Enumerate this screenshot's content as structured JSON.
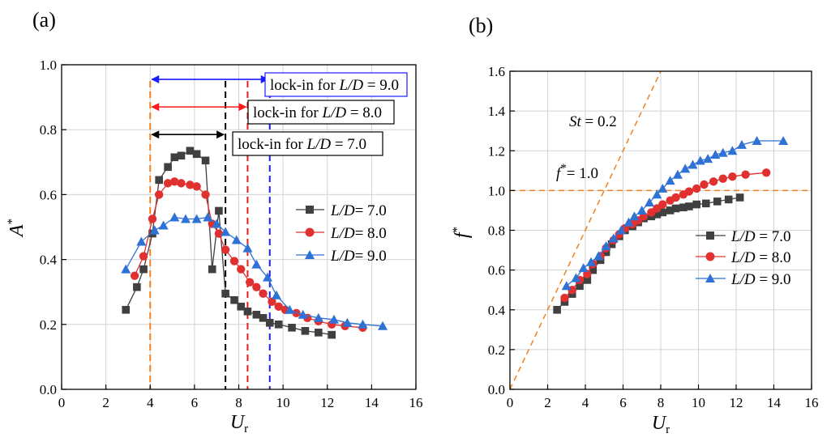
{
  "chart_data": [
    {
      "type": "line",
      "panel_label": "(a)",
      "xlabel": "U",
      "xlabel_sub": "r",
      "ylabel": "A",
      "ylabel_sup": "*",
      "xlim": [
        0,
        16
      ],
      "ylim": [
        0,
        1.0
      ],
      "xticks": [
        0,
        2,
        4,
        6,
        8,
        10,
        12,
        14,
        16
      ],
      "yticks": [
        0.0,
        0.2,
        0.4,
        0.6,
        0.8,
        1.0
      ],
      "xtick_labels": [
        "0",
        "2",
        "4",
        "6",
        "8",
        "10",
        "12",
        "14",
        "16"
      ],
      "ytick_labels": [
        "0.0",
        "0.2",
        "0.4",
        "0.6",
        "0.8",
        "1.0"
      ],
      "grid": true,
      "legend_position": "right-middle",
      "series": [
        {
          "name": "L/D= 7.0",
          "legend_prefix": "L/D",
          "legend_suffix": "= 7.0",
          "color": "#404040",
          "marker": "square",
          "x": [
            2.9,
            3.4,
            3.7,
            4.1,
            4.4,
            4.8,
            5.1,
            5.4,
            5.8,
            6.1,
            6.5,
            6.8,
            7.1,
            7.4,
            7.8,
            8.1,
            8.4,
            8.8,
            9.1,
            9.4,
            9.8,
            10.4,
            11.0,
            11.6,
            12.2
          ],
          "values": [
            0.245,
            0.315,
            0.37,
            0.48,
            0.645,
            0.685,
            0.715,
            0.72,
            0.735,
            0.725,
            0.705,
            0.37,
            0.55,
            0.295,
            0.275,
            0.255,
            0.24,
            0.23,
            0.22,
            0.205,
            0.2,
            0.19,
            0.18,
            0.175,
            0.168
          ]
        },
        {
          "name": "L/D= 8.0",
          "legend_prefix": "L/D",
          "legend_suffix": "= 8.0",
          "color": "#e03030",
          "marker": "circle",
          "x": [
            3.3,
            3.7,
            4.1,
            4.4,
            4.8,
            5.1,
            5.4,
            5.8,
            6.1,
            6.5,
            6.8,
            7.1,
            7.4,
            7.8,
            8.1,
            8.5,
            8.8,
            9.1,
            9.5,
            9.8,
            10.1,
            10.6,
            11.1,
            11.6,
            12.2,
            12.8,
            13.6
          ],
          "values": [
            0.35,
            0.41,
            0.525,
            0.6,
            0.635,
            0.64,
            0.635,
            0.63,
            0.625,
            0.6,
            0.51,
            0.48,
            0.43,
            0.395,
            0.37,
            0.33,
            0.315,
            0.295,
            0.27,
            0.255,
            0.245,
            0.235,
            0.22,
            0.21,
            0.2,
            0.195,
            0.19
          ]
        },
        {
          "name": "L/D= 9.0",
          "legend_prefix": "L/D",
          "legend_suffix": "= 9.0",
          "color": "#2f72d6",
          "marker": "triangle",
          "x": [
            2.9,
            3.6,
            4.2,
            4.6,
            5.1,
            5.6,
            6.1,
            6.6,
            7.0,
            7.4,
            7.9,
            8.4,
            8.8,
            9.3,
            9.7,
            10.3,
            10.9,
            11.6,
            12.3,
            12.9,
            13.6,
            14.5
          ],
          "values": [
            0.37,
            0.455,
            0.49,
            0.505,
            0.53,
            0.525,
            0.525,
            0.53,
            0.51,
            0.485,
            0.46,
            0.435,
            0.385,
            0.345,
            0.29,
            0.245,
            0.23,
            0.22,
            0.215,
            0.205,
            0.2,
            0.195
          ]
        }
      ],
      "vertical_lines": [
        {
          "x": 4.0,
          "color": "#f08020"
        },
        {
          "x": 7.4,
          "color": "#000000"
        },
        {
          "x": 8.4,
          "color": "#e02020"
        },
        {
          "x": 9.4,
          "color": "#2020e0"
        }
      ],
      "lock_in_ranges": [
        {
          "from": 4.0,
          "to": 9.4,
          "y": 0.955,
          "color": "#1a1aff",
          "label_prefix": "lock-in for ",
          "label_var": "L/D",
          "label_value": " = 9.0"
        },
        {
          "from": 4.0,
          "to": 8.4,
          "y": 0.87,
          "color": "#ff1a1a",
          "label_prefix": "lock-in for ",
          "label_var": "L/D",
          "label_value": " = 8.0"
        },
        {
          "from": 4.0,
          "to": 7.4,
          "y": 0.785,
          "color": "#000000",
          "label_prefix": "lock-in for ",
          "label_var": "L/D",
          "label_value": " = 7.0"
        }
      ]
    },
    {
      "type": "line",
      "panel_label": "(b)",
      "xlabel": "U",
      "xlabel_sub": "r",
      "ylabel": "f",
      "ylabel_sup": "*",
      "xlim": [
        0,
        16
      ],
      "ylim": [
        0,
        1.6
      ],
      "xticks": [
        0,
        2,
        4,
        6,
        8,
        10,
        12,
        14,
        16
      ],
      "yticks": [
        0.0,
        0.2,
        0.4,
        0.6,
        0.8,
        1.0,
        1.2,
        1.4,
        1.6
      ],
      "xtick_labels": [
        "0",
        "2",
        "4",
        "6",
        "8",
        "10",
        "12",
        "14",
        "16"
      ],
      "ytick_labels": [
        "0.0",
        "0.2",
        "0.4",
        "0.6",
        "0.8",
        "1.0",
        "1.2",
        "1.4",
        "1.6"
      ],
      "grid": true,
      "legend_position": "right-middle",
      "series": [
        {
          "name": "L/D = 7.0",
          "legend_prefix": "L/D",
          "legend_suffix": " = 7.0",
          "color": "#404040",
          "marker": "square",
          "x": [
            2.5,
            2.9,
            3.3,
            3.7,
            4.1,
            4.4,
            4.8,
            5.1,
            5.4,
            5.8,
            6.1,
            6.5,
            6.8,
            7.1,
            7.5,
            7.8,
            8.1,
            8.5,
            8.8,
            9.2,
            9.5,
            9.9,
            10.4,
            11.0,
            11.6,
            12.2
          ],
          "values": [
            0.4,
            0.44,
            0.48,
            0.52,
            0.55,
            0.6,
            0.65,
            0.69,
            0.73,
            0.77,
            0.8,
            0.82,
            0.84,
            0.86,
            0.87,
            0.88,
            0.89,
            0.9,
            0.91,
            0.915,
            0.92,
            0.93,
            0.935,
            0.945,
            0.955,
            0.965
          ]
        },
        {
          "name": "L/D = 8.0",
          "legend_prefix": "L/D",
          "legend_suffix": " = 8.0",
          "color": "#e03030",
          "marker": "circle",
          "x": [
            2.9,
            3.3,
            3.7,
            4.1,
            4.4,
            4.8,
            5.1,
            5.5,
            5.8,
            6.1,
            6.5,
            6.8,
            7.1,
            7.5,
            7.8,
            8.1,
            8.5,
            8.8,
            9.2,
            9.5,
            9.9,
            10.3,
            10.8,
            11.3,
            11.8,
            12.5,
            13.6
          ],
          "values": [
            0.46,
            0.5,
            0.55,
            0.58,
            0.63,
            0.67,
            0.71,
            0.75,
            0.78,
            0.81,
            0.83,
            0.85,
            0.87,
            0.89,
            0.91,
            0.93,
            0.95,
            0.965,
            0.98,
            0.995,
            1.01,
            1.03,
            1.045,
            1.06,
            1.07,
            1.08,
            1.09
          ]
        },
        {
          "name": "L/D = 9.0",
          "legend_prefix": "L/D",
          "legend_suffix": " = 9.0",
          "color": "#2f72d6",
          "marker": "triangle",
          "x": [
            3.0,
            3.5,
            3.9,
            4.3,
            4.7,
            5.1,
            5.5,
            5.9,
            6.3,
            6.6,
            7.0,
            7.4,
            7.8,
            8.1,
            8.5,
            8.9,
            9.3,
            9.7,
            10.1,
            10.5,
            10.9,
            11.3,
            11.8,
            12.3,
            13.1,
            14.5
          ],
          "values": [
            0.52,
            0.56,
            0.61,
            0.64,
            0.67,
            0.72,
            0.76,
            0.8,
            0.84,
            0.87,
            0.9,
            0.94,
            0.98,
            1.01,
            1.05,
            1.08,
            1.11,
            1.13,
            1.15,
            1.16,
            1.18,
            1.19,
            1.2,
            1.23,
            1.25,
            1.25
          ]
        }
      ],
      "reference_lines": [
        {
          "kind": "Strouhal",
          "slope": 0.2,
          "color": "#f08020"
        },
        {
          "kind": "horizontal",
          "y": 1.0,
          "color": "#f08020"
        }
      ],
      "annotations": [
        {
          "var": "St",
          "text": " = 0.2",
          "x": 4.0,
          "y": 1.33
        },
        {
          "var": "f",
          "sup": "*",
          "text": "= 1.0",
          "x": 2.8,
          "y": 1.06
        }
      ]
    }
  ]
}
